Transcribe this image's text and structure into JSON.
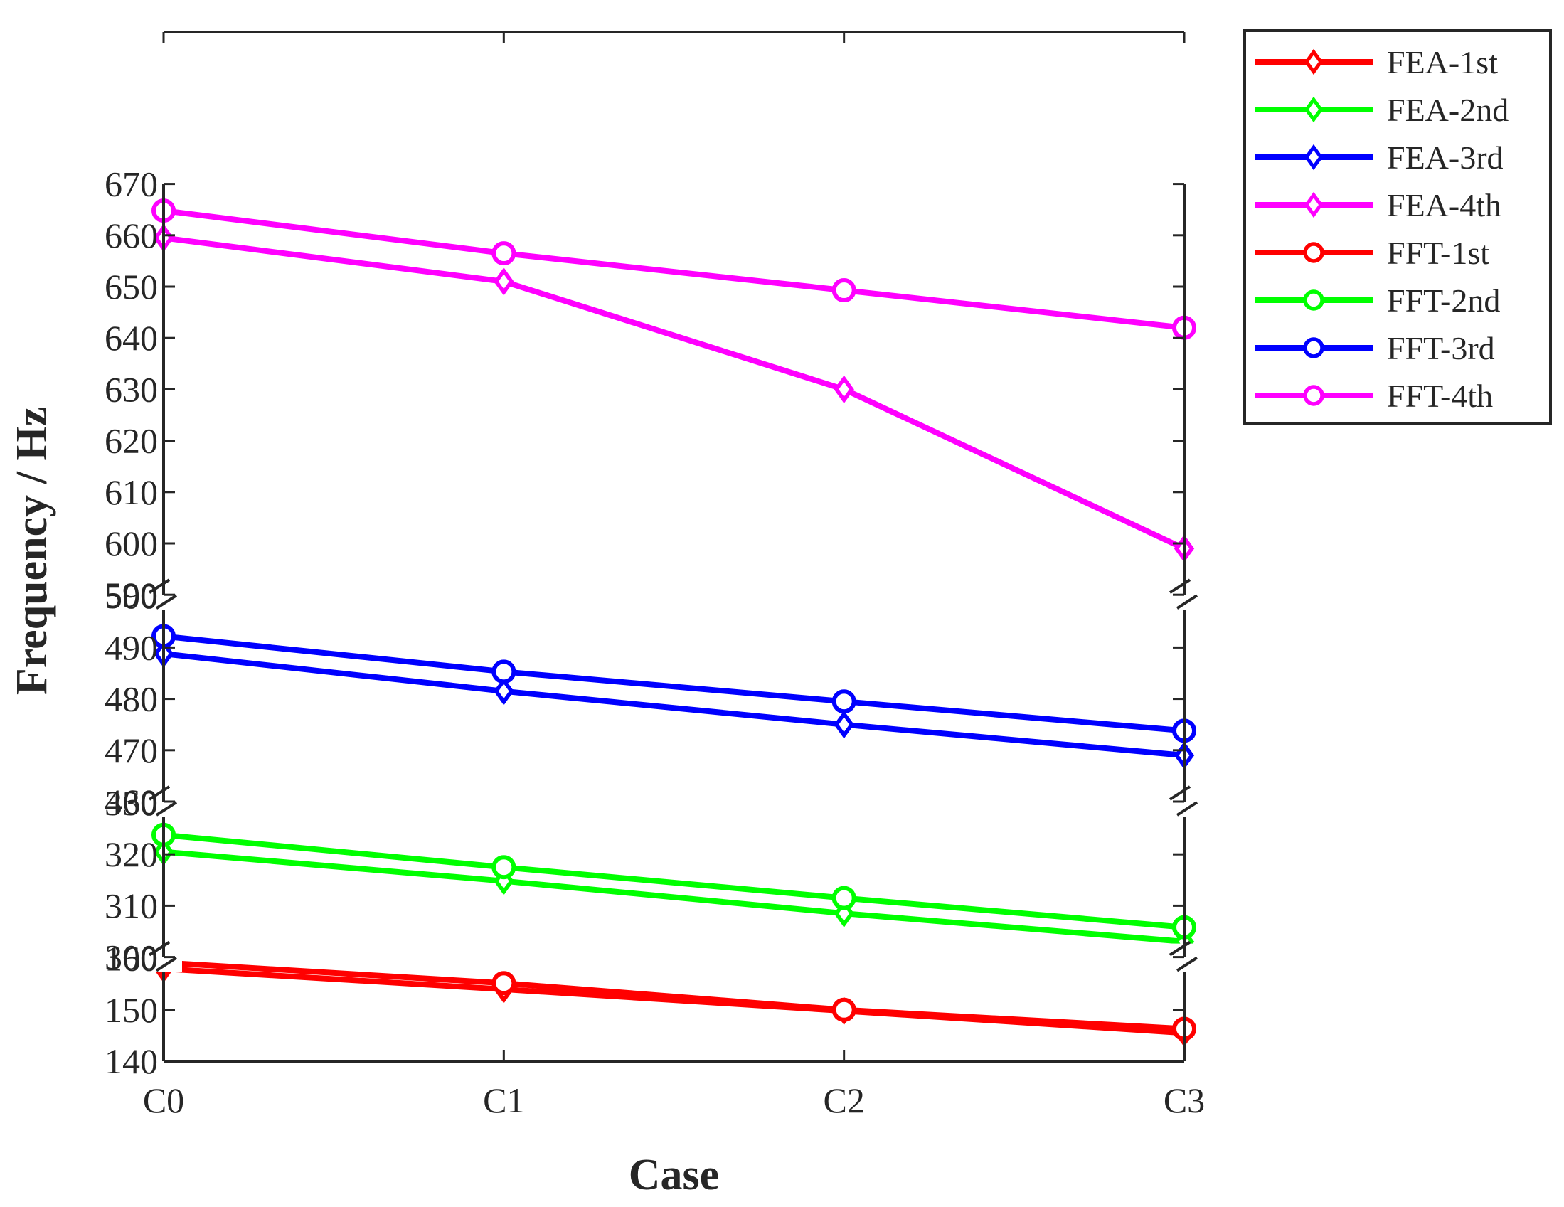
{
  "chart_data": {
    "type": "line",
    "title": "",
    "xlabel": "Case",
    "ylabel": "Frequency / Hz",
    "categories": [
      "C0",
      "C1",
      "C2",
      "C3"
    ],
    "grid": false,
    "legend_position": "outside-top-right",
    "broken_axis": true,
    "segments": [
      {
        "range": [
          140,
          160
        ],
        "ticks": [
          "140",
          "150",
          "160"
        ]
      },
      {
        "range": [
          300,
          330
        ],
        "ticks": [
          "300",
          "310",
          "320",
          "330"
        ]
      },
      {
        "range": [
          460,
          500
        ],
        "ticks": [
          "460",
          "470",
          "480",
          "490",
          "500"
        ]
      },
      {
        "range": [
          590,
          670
        ],
        "ticks": [
          "590",
          "600",
          "610",
          "620",
          "630",
          "640",
          "650",
          "660",
          "670"
        ]
      }
    ],
    "series": [
      {
        "name": "FEA-1st",
        "color": "#ff0000",
        "marker": "diamond",
        "values": [
          158.0,
          154.0,
          149.8,
          145.5
        ]
      },
      {
        "name": "FEA-2nd",
        "color": "#00ff00",
        "marker": "diamond",
        "values": [
          320.5,
          314.8,
          308.5,
          303.0
        ]
      },
      {
        "name": "FEA-3rd",
        "color": "#0000ff",
        "marker": "diamond",
        "values": [
          488.8,
          481.5,
          475.0,
          469.0
        ]
      },
      {
        "name": "FEA-4th",
        "color": "#ff00ff",
        "marker": "diamond",
        "values": [
          659.5,
          651.0,
          630.0,
          599.0
        ]
      },
      {
        "name": "FFT-1st",
        "color": "#ff0000",
        "marker": "circle",
        "values": [
          159.2,
          155.2,
          150.0,
          146.3
        ]
      },
      {
        "name": "FFT-2nd",
        "color": "#00ff00",
        "marker": "circle",
        "values": [
          323.8,
          317.5,
          311.5,
          305.8
        ]
      },
      {
        "name": "FFT-3rd",
        "color": "#0000ff",
        "marker": "circle",
        "values": [
          492.2,
          485.3,
          479.5,
          473.8
        ]
      },
      {
        "name": "FFT-4th",
        "color": "#ff00ff",
        "marker": "circle",
        "values": [
          664.8,
          656.5,
          649.3,
          642.0
        ]
      }
    ]
  }
}
